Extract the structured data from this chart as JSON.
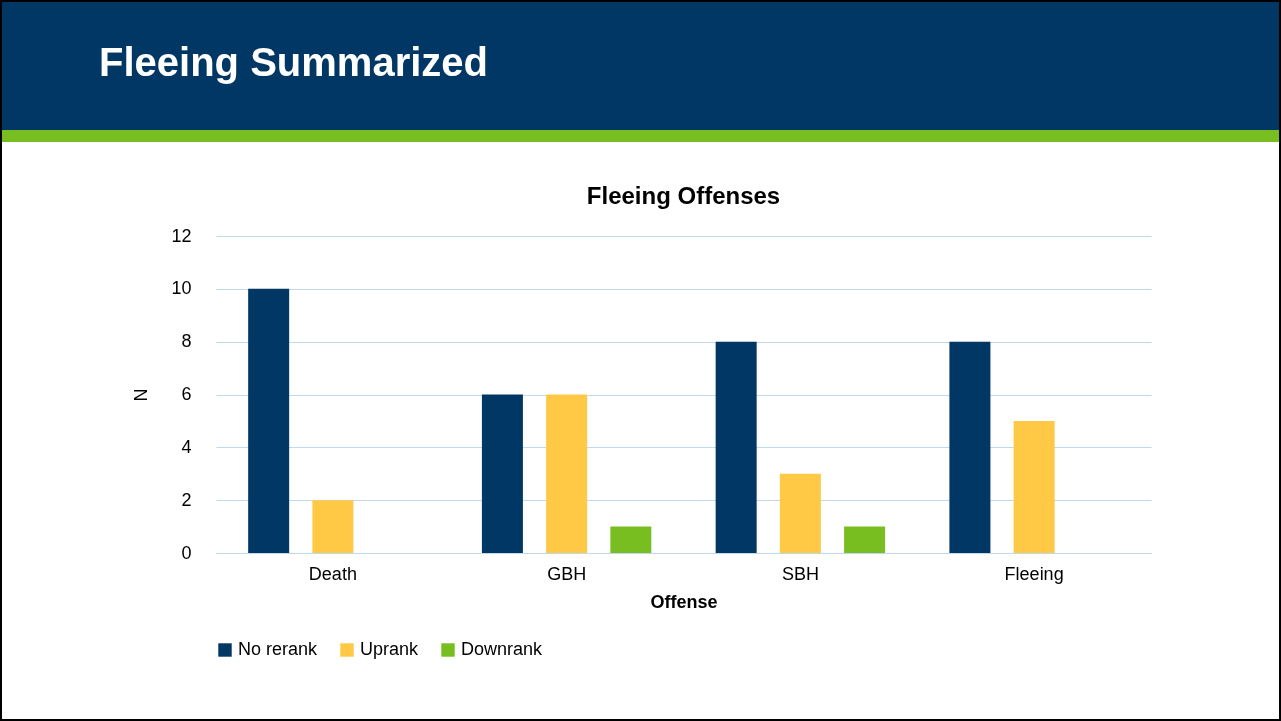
{
  "chart_data": {
    "type": "bar",
    "title": "Fleeing Summarized",
    "subtitle": "Fleeing Offenses",
    "xlabel": "Offense",
    "ylabel": "N",
    "categories": [
      "Death",
      "GBH",
      "SBH",
      "Fleeing"
    ],
    "series": [
      {
        "name": "No rerank",
        "color": "#003764",
        "values": [
          10,
          6,
          8,
          8
        ]
      },
      {
        "name": "Uprank",
        "color": "#ffc845",
        "values": [
          2,
          6,
          3,
          5
        ]
      },
      {
        "name": "Downrank",
        "color": "#78be20",
        "values": [
          0,
          1,
          1,
          0
        ]
      }
    ],
    "ylim": [
      0,
      12
    ],
    "yticks": [
      0,
      2,
      4,
      6,
      8,
      10,
      12
    ],
    "grid": "y",
    "legend": "bottom"
  }
}
